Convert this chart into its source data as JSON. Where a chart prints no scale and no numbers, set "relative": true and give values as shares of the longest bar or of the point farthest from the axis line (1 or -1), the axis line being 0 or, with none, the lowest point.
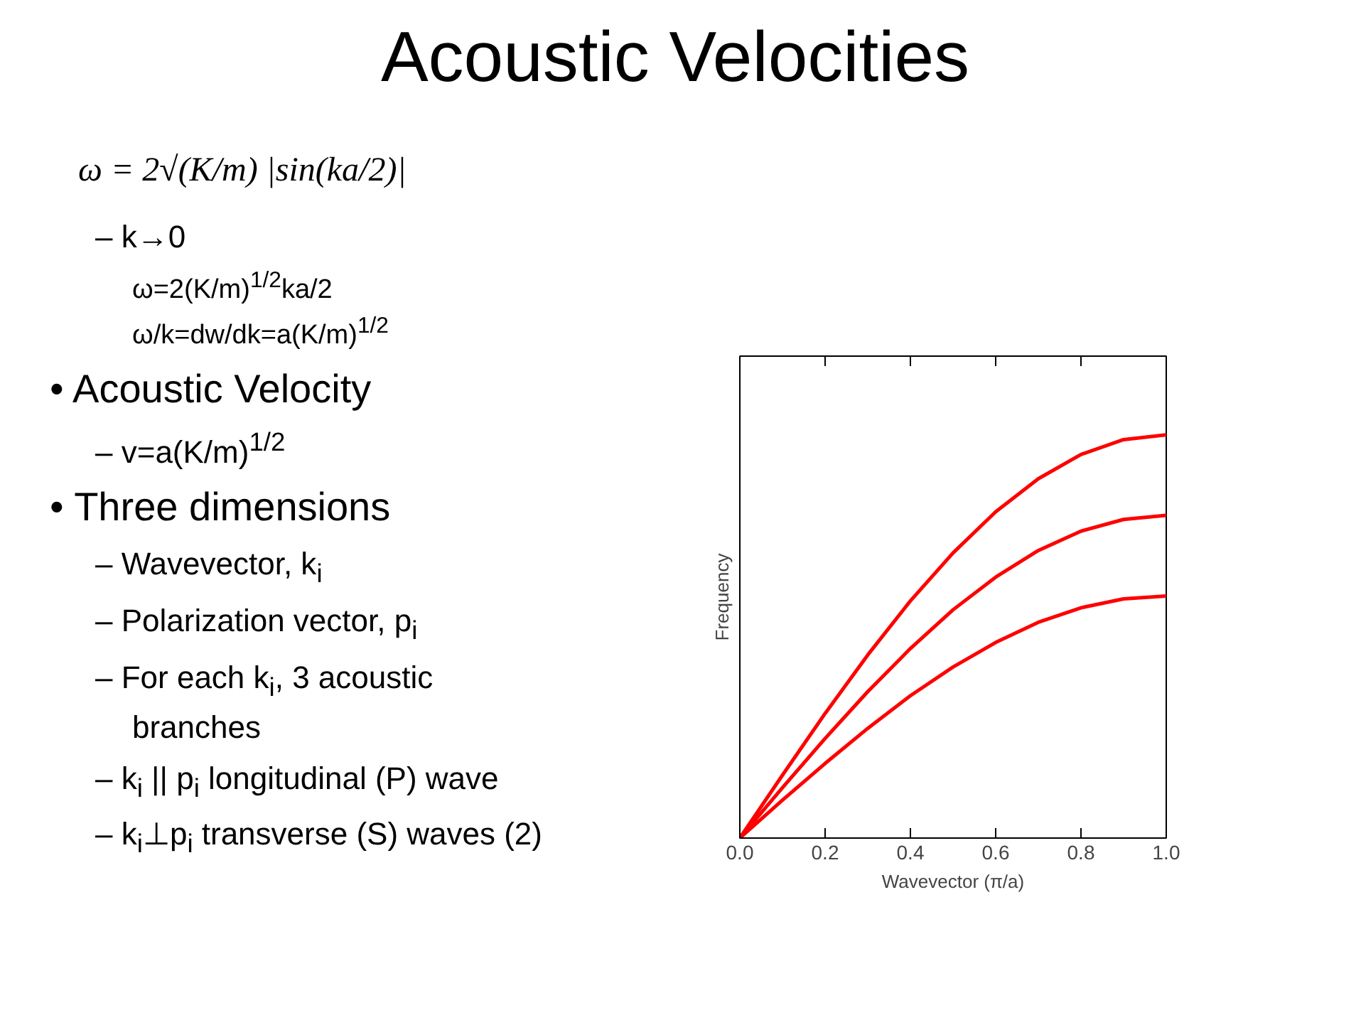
{
  "chart_data": {
    "type": "line",
    "title": "Acoustic Velocities",
    "xlabel": "Wavevector (π/a)",
    "ylabel": "Frequency",
    "x": [
      0,
      0.1,
      0.2,
      0.3,
      0.4,
      0.5,
      0.6,
      0.7,
      0.8,
      0.9,
      1.0
    ],
    "relative": true,
    "series": [
      {
        "color": "#ff0000",
        "values": [
          0,
          0.156,
          0.309,
          0.454,
          0.588,
          0.707,
          0.809,
          0.891,
          0.951,
          0.988,
          1.0
        ]
      },
      {
        "color": "#ff0000",
        "values": [
          0,
          0.125,
          0.247,
          0.363,
          0.47,
          0.566,
          0.647,
          0.713,
          0.761,
          0.79,
          0.8
        ]
      },
      {
        "color": "#ff0000",
        "values": [
          0,
          0.094,
          0.185,
          0.272,
          0.353,
          0.424,
          0.485,
          0.535,
          0.571,
          0.593,
          0.6
        ]
      }
    ],
    "xlim": [
      0,
      1.0
    ],
    "xticks": [
      {
        "value": 0,
        "label": "0.0"
      },
      0.2,
      0.4,
      0.6,
      0.8,
      {
        "value": 1.0,
        "label": "1.0"
      }
    ],
    "tick_labels": "x",
    "grid": false,
    "marker": "none",
    "line_style": "solid",
    "annotations": [
      "ω = 2√(K/m) |sin(ka/2)|",
      "– k→0",
      "ω=2(K/m)$^{1/2}$ka/2",
      "ω/k=dw/dk=a(K/m)$^{1/2}$",
      "• Acoustic Velocity",
      "– v=a(K/m)$^{1/2}$",
      "• Three dimensions",
      "– Wavevector, k$_{i}$",
      "– Polarization vector, p$_{i}$",
      "– For each k$_{i}$, 3 acoustic branches",
      "– k$_{i}$ || p$_{i}$ longitudinal (P) wave",
      "– k$_{i}$⊥p$_{i}$ transverse (S) waves (2)"
    ]
  }
}
